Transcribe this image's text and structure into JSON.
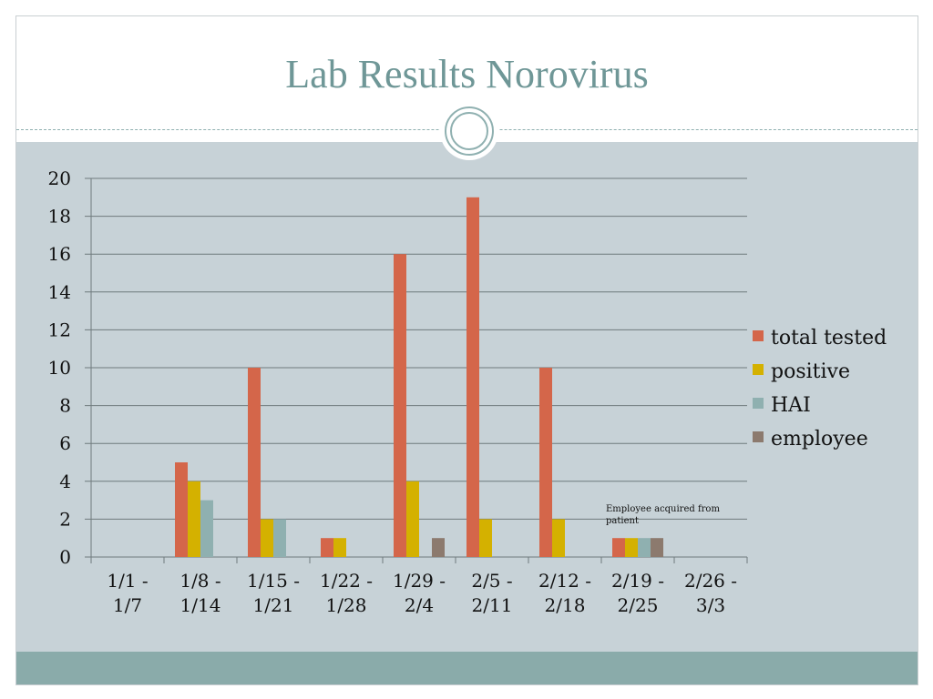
{
  "slide": {
    "title": "Lab Results Norovirus"
  },
  "chart_data": {
    "type": "bar",
    "categories": [
      [
        "1/1 -",
        "1/7"
      ],
      [
        "1/8 -",
        "1/14"
      ],
      [
        "1/15 -",
        "1/21"
      ],
      [
        "1/22 -",
        "1/28"
      ],
      [
        "1/29 -",
        "2/4"
      ],
      [
        "2/5 -",
        "2/11"
      ],
      [
        "2/12 -",
        "2/18"
      ],
      [
        "2/19 -",
        "2/25"
      ],
      [
        "2/26 -",
        "3/3"
      ]
    ],
    "series": [
      {
        "name": "total tested",
        "color": "#d4664a",
        "values": [
          0,
          5,
          10,
          1,
          16,
          19,
          10,
          1,
          0
        ]
      },
      {
        "name": "positive",
        "color": "#d4b100",
        "values": [
          0,
          4,
          2,
          1,
          4,
          2,
          2,
          1,
          0
        ]
      },
      {
        "name": "HAI",
        "color": "#8fb0b0",
        "values": [
          0,
          3,
          2,
          0,
          0,
          0,
          0,
          1,
          0
        ]
      },
      {
        "name": "employee",
        "color": "#8c7a6e",
        "values": [
          0,
          0,
          0,
          0,
          1,
          0,
          0,
          1,
          0
        ]
      }
    ],
    "ylim": [
      0,
      20
    ],
    "yticks": [
      0,
      2,
      4,
      6,
      8,
      10,
      12,
      14,
      16,
      18,
      20
    ],
    "grid": true,
    "legend": "right",
    "annotation": {
      "lines": [
        "Employee acquired from",
        "patient"
      ],
      "category_index": 7
    }
  }
}
